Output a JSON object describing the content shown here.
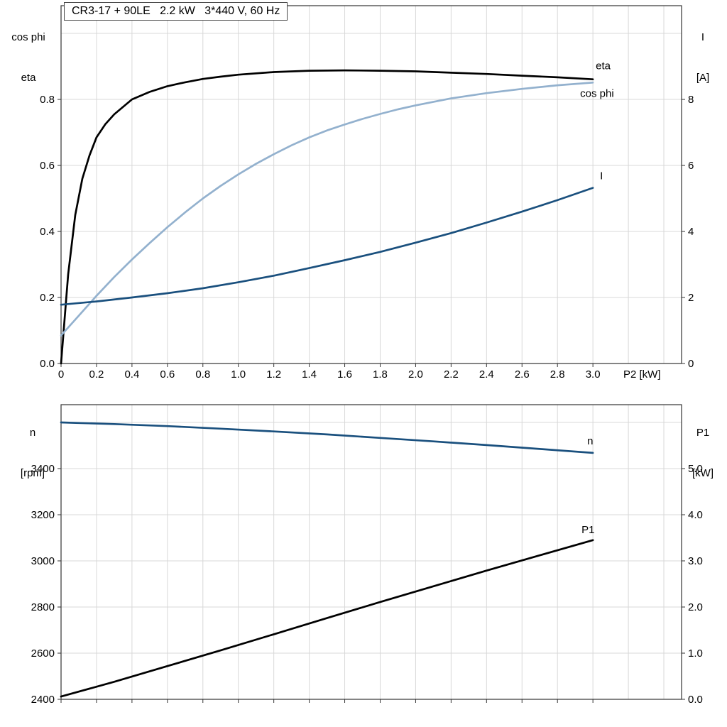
{
  "colors": {
    "grid": "#d8d8d8",
    "frame": "#333333",
    "black": "#000000",
    "dark_blue": "#1a507e",
    "light_blue": "#93b1ce"
  },
  "chart_data": [
    {
      "type": "line",
      "title": "CR3-17 + 90LE   2.2 kW   3*440 V, 60 Hz",
      "x_axis": {
        "label": "P2 [kW]",
        "range": [
          0,
          3.5
        ],
        "tick_values": [
          0,
          0.2,
          0.4,
          0.6,
          0.8,
          1.0,
          1.2,
          1.4,
          1.6,
          1.8,
          2.0,
          2.2,
          2.4,
          2.6,
          2.8,
          3.0
        ],
        "tick_labels": [
          "0",
          "0.2",
          "0.4",
          "0.6",
          "0.8",
          "1.0",
          "1.2",
          "1.4",
          "1.6",
          "1.8",
          "2.0",
          "2.2",
          "2.4",
          "2.6",
          "2.8",
          "3.0"
        ],
        "grid_values": [
          0.2,
          0.4,
          0.6,
          0.8,
          1.0,
          1.2,
          1.4,
          1.6,
          1.8,
          2.0,
          2.2,
          2.4,
          2.6,
          2.8,
          3.0,
          3.2,
          3.4
        ]
      },
      "y_left": {
        "title_lines": [
          "cos phi",
          "eta"
        ],
        "range": [
          0,
          1.084
        ],
        "tick_values": [
          0,
          0.2,
          0.4,
          0.6,
          0.8
        ],
        "tick_labels": [
          "0.0",
          "0.2",
          "0.4",
          "0.6",
          "0.8"
        ],
        "grid_values": [
          0.2,
          0.4,
          0.6,
          0.8,
          1.0
        ]
      },
      "y_right": {
        "title_lines": [
          "I",
          "[A]"
        ],
        "range": [
          0,
          10.84
        ],
        "tick_values": [
          0,
          2,
          4,
          6,
          8
        ],
        "tick_labels": [
          "0",
          "2",
          "4",
          "6",
          "8"
        ]
      },
      "series": [
        {
          "name": "eta",
          "label": "eta",
          "axis": "left",
          "color": "#000000",
          "width": 2.7,
          "label_offset": [
            4,
            -14
          ],
          "points": [
            [
              0,
              0
            ],
            [
              0.04,
              0.27
            ],
            [
              0.08,
              0.45
            ],
            [
              0.12,
              0.56
            ],
            [
              0.16,
              0.63
            ],
            [
              0.2,
              0.685
            ],
            [
              0.25,
              0.725
            ],
            [
              0.3,
              0.755
            ],
            [
              0.4,
              0.8
            ],
            [
              0.5,
              0.823
            ],
            [
              0.6,
              0.84
            ],
            [
              0.7,
              0.852
            ],
            [
              0.8,
              0.862
            ],
            [
              0.9,
              0.869
            ],
            [
              1.0,
              0.875
            ],
            [
              1.2,
              0.883
            ],
            [
              1.4,
              0.887
            ],
            [
              1.6,
              0.888
            ],
            [
              1.8,
              0.887
            ],
            [
              2.0,
              0.885
            ],
            [
              2.2,
              0.881
            ],
            [
              2.4,
              0.877
            ],
            [
              2.6,
              0.872
            ],
            [
              2.8,
              0.867
            ],
            [
              3.0,
              0.861
            ]
          ]
        },
        {
          "name": "cos-phi",
          "label": "cos phi",
          "axis": "left",
          "color": "#93b1ce",
          "width": 2.7,
          "label_offset": [
            -18,
            20
          ],
          "points": [
            [
              0,
              0.085
            ],
            [
              0.1,
              0.145
            ],
            [
              0.2,
              0.205
            ],
            [
              0.3,
              0.262
            ],
            [
              0.4,
              0.315
            ],
            [
              0.5,
              0.365
            ],
            [
              0.6,
              0.413
            ],
            [
              0.7,
              0.458
            ],
            [
              0.8,
              0.5
            ],
            [
              0.9,
              0.538
            ],
            [
              1.0,
              0.573
            ],
            [
              1.1,
              0.605
            ],
            [
              1.2,
              0.634
            ],
            [
              1.3,
              0.661
            ],
            [
              1.4,
              0.685
            ],
            [
              1.5,
              0.706
            ],
            [
              1.6,
              0.724
            ],
            [
              1.7,
              0.741
            ],
            [
              1.8,
              0.756
            ],
            [
              1.9,
              0.77
            ],
            [
              2.0,
              0.782
            ],
            [
              2.2,
              0.803
            ],
            [
              2.4,
              0.819
            ],
            [
              2.6,
              0.832
            ],
            [
              2.8,
              0.843
            ],
            [
              3.0,
              0.851
            ]
          ]
        },
        {
          "name": "current",
          "label": "I",
          "axis": "right",
          "color": "#1a507e",
          "width": 2.7,
          "label_offset": [
            10,
            -12
          ],
          "points": [
            [
              0,
              1.78
            ],
            [
              0.2,
              1.88
            ],
            [
              0.4,
              2.0
            ],
            [
              0.6,
              2.13
            ],
            [
              0.8,
              2.28
            ],
            [
              1.0,
              2.46
            ],
            [
              1.2,
              2.66
            ],
            [
              1.4,
              2.89
            ],
            [
              1.6,
              3.13
            ],
            [
              1.8,
              3.38
            ],
            [
              2.0,
              3.66
            ],
            [
              2.2,
              3.95
            ],
            [
              2.4,
              4.27
            ],
            [
              2.6,
              4.6
            ],
            [
              2.8,
              4.95
            ],
            [
              3.0,
              5.32
            ]
          ]
        }
      ]
    },
    {
      "type": "line",
      "x_axis": {
        "range": [
          0,
          3.5
        ],
        "tick_values": [
          0,
          0.2,
          0.4,
          0.6,
          0.8,
          1.0,
          1.2,
          1.4,
          1.6,
          1.8,
          2.0,
          2.2,
          2.4,
          2.6,
          2.8,
          3.0
        ],
        "grid_values": [
          0.2,
          0.4,
          0.6,
          0.8,
          1.0,
          1.2,
          1.4,
          1.6,
          1.8,
          2.0,
          2.2,
          2.4,
          2.6,
          2.8,
          3.0,
          3.2,
          3.4
        ]
      },
      "y_left": {
        "title_lines": [
          "n",
          "[rpm]"
        ],
        "range": [
          2400,
          3677
        ],
        "tick_values": [
          2400,
          2600,
          2800,
          3000,
          3200,
          3400
        ],
        "tick_labels": [
          "2400",
          "2600",
          "2800",
          "3000",
          "3200",
          "3400"
        ],
        "grid_values": [
          2600,
          2800,
          3000,
          3200,
          3400,
          3600
        ]
      },
      "y_right": {
        "title_lines": [
          "P1",
          "[kW]"
        ],
        "range": [
          0,
          6.385
        ],
        "tick_values": [
          0,
          1,
          2,
          3,
          4,
          5
        ],
        "tick_labels": [
          "0.0",
          "1.0",
          "2.0",
          "3.0",
          "4.0",
          "5.0"
        ]
      },
      "series": [
        {
          "name": "speed",
          "label": "n",
          "axis": "left",
          "color": "#1a507e",
          "width": 2.7,
          "label_offset": [
            -8,
            -12
          ],
          "points": [
            [
              0,
              3600
            ],
            [
              0.3,
              3593
            ],
            [
              0.6,
              3584
            ],
            [
              0.9,
              3573
            ],
            [
              1.2,
              3561
            ],
            [
              1.5,
              3548
            ],
            [
              1.8,
              3533
            ],
            [
              2.1,
              3518
            ],
            [
              2.4,
              3502
            ],
            [
              2.7,
              3485
            ],
            [
              3.0,
              3468
            ]
          ]
        },
        {
          "name": "p1",
          "label": "P1",
          "axis": "right",
          "color": "#000000",
          "width": 2.7,
          "label_offset": [
            -16,
            -10
          ],
          "points": [
            [
              0,
              0.06
            ],
            [
              0.3,
              0.38
            ],
            [
              0.6,
              0.72
            ],
            [
              0.9,
              1.06
            ],
            [
              1.2,
              1.41
            ],
            [
              1.5,
              1.76
            ],
            [
              1.8,
              2.11
            ],
            [
              2.1,
              2.45
            ],
            [
              2.4,
              2.79
            ],
            [
              2.7,
              3.12
            ],
            [
              3.0,
              3.45
            ]
          ]
        }
      ]
    }
  ]
}
